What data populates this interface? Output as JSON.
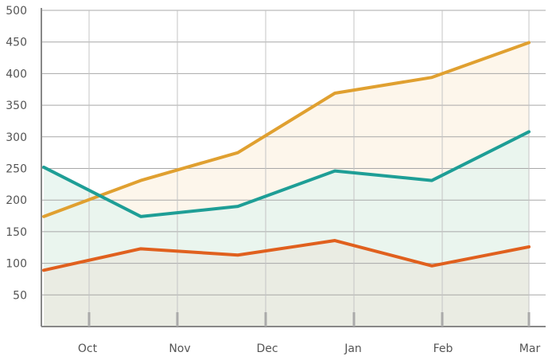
{
  "chart_data": {
    "type": "area",
    "title": "",
    "xlabel": "",
    "ylabel": "",
    "x_ticks": [
      "Oct",
      "Nov",
      "Dec",
      "Jan",
      "Feb",
      "Mar"
    ],
    "y_ticks": [
      "50",
      "100",
      "150",
      "200",
      "250",
      "300",
      "350",
      "400",
      "450",
      "500"
    ],
    "ylim": [
      0,
      500
    ],
    "grid": true,
    "legend": "none",
    "series": [
      {
        "color": "#e0a030",
        "fill": "#fdf5e8",
        "values": [
          174,
          231,
          275,
          369,
          394,
          449
        ]
      },
      {
        "color": "#1e9e96",
        "fill": "#e6f4ef",
        "values": [
          252,
          174,
          190,
          246,
          231,
          308
        ]
      },
      {
        "color": "#e0601e",
        "fill": "#eaeae0",
        "values": [
          89,
          123,
          113,
          136,
          96,
          126
        ]
      }
    ]
  }
}
